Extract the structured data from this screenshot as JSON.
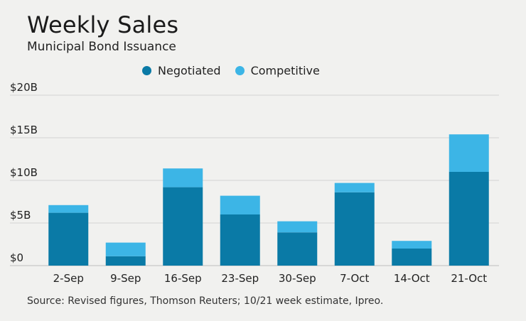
{
  "chart_data": {
    "type": "bar",
    "stacked": true,
    "title": "Weekly Sales",
    "subtitle": "Municipal Bond Issuance",
    "categories": [
      "2-Sep",
      "9-Sep",
      "16-Sep",
      "23-Sep",
      "30-Sep",
      "7-Oct",
      "14-Oct",
      "21-Oct"
    ],
    "series": [
      {
        "name": "Negotiated",
        "color": "#0a7aa6",
        "values": [
          6.2,
          1.1,
          9.2,
          6.0,
          3.9,
          8.6,
          2.0,
          11.0
        ]
      },
      {
        "name": "Competitive",
        "color": "#3cb5e6",
        "values": [
          0.9,
          1.6,
          2.2,
          2.2,
          1.3,
          1.1,
          0.9,
          4.4
        ]
      }
    ],
    "ylim": [
      0,
      20
    ],
    "yticks": [
      0,
      5,
      10,
      15,
      20
    ],
    "ytick_labels": [
      "$0",
      "$5B",
      "$10B",
      "$15B",
      "$20B"
    ],
    "grid": true,
    "legend_position": "top-center",
    "source": "Source: Revised figures, Thomson Reuters; 10/21 week estimate, Ipreo."
  }
}
